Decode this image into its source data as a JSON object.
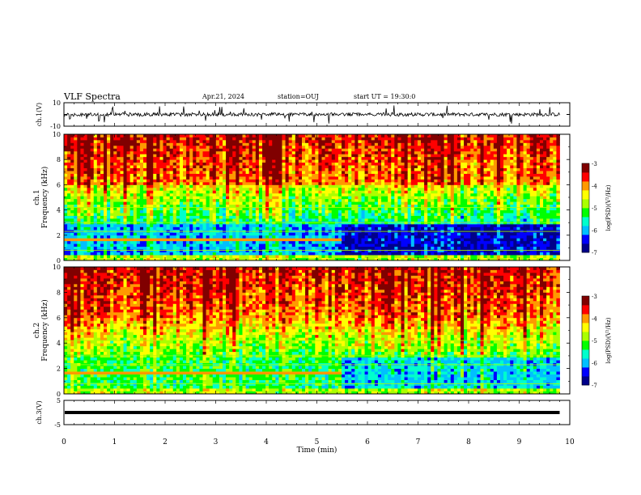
{
  "header": {
    "title": "VLF Spectra",
    "date": "Apr.21, 2024",
    "station": "station=OUJ",
    "start": "start UT = 19:30:0"
  },
  "colors": {
    "colormap": [
      "#00008b",
      "#0000ff",
      "#00bfff",
      "#00ffcc",
      "#00ff00",
      "#aaff00",
      "#ffff00",
      "#ff9900",
      "#ff0000",
      "#800000"
    ],
    "trace": "#000000"
  },
  "chart_data": [
    {
      "type": "line",
      "panel": "waveform-ch1",
      "ylabel": "ch.1(V)",
      "ylim": [
        -10,
        10
      ],
      "y_tick_labels": [
        "10",
        "-10"
      ],
      "xlim": [
        0,
        10
      ],
      "description_values": {
        "baseline_v": 0,
        "noise_amplitude_v": 1.5,
        "spike_amplitude_v": 8,
        "trace_end_min": 9.8
      }
    },
    {
      "type": "heatmap",
      "panel": "spectrogram-ch1",
      "ylabel": "ch.1\nFrequency (kHz)",
      "ylim": [
        0,
        10
      ],
      "y_tick_labels": [
        "0",
        "2",
        "4",
        "6",
        "8",
        "10"
      ],
      "xlim": [
        0,
        10
      ],
      "data_end_min": 9.8,
      "colorbar": {
        "label": "log(PSD)(V²/Hz)",
        "range": [
          -7,
          -3
        ],
        "ticks": [
          "-3",
          "-4",
          "-5",
          "-6",
          "-7"
        ]
      },
      "features": {
        "high_band_khz": [
          6,
          10
        ],
        "high_band_log_psd": -3.5,
        "mid_band_khz": [
          3,
          6
        ],
        "mid_band_log_psd": -5,
        "low_band_khz": [
          0.5,
          3
        ],
        "low_band_log_psd": -6,
        "line_emission_khz": 1.6,
        "line_emission_end_min": 5.5
      }
    },
    {
      "type": "heatmap",
      "panel": "spectrogram-ch2",
      "ylabel": "ch.2\nFrequency (kHz)",
      "ylim": [
        0,
        10
      ],
      "y_tick_labels": [
        "0",
        "2",
        "4",
        "6",
        "8",
        "10"
      ],
      "xlim": [
        0,
        10
      ],
      "data_end_min": 9.8,
      "colorbar": {
        "label": "log(PSD)(V²/Hz)",
        "range": [
          -7,
          -3
        ],
        "ticks": [
          "-3",
          "-4",
          "-5",
          "-6",
          "-7"
        ]
      },
      "features": {
        "high_band_khz": [
          6,
          10
        ],
        "high_band_log_psd": -3.5,
        "mid_band_khz": [
          3,
          6
        ],
        "mid_band_log_psd": -4.6,
        "low_band_khz": [
          0.5,
          3
        ],
        "low_band_log_psd": -5.3,
        "line_emission_khz": 1.6,
        "line_emission_end_min": 5.5
      }
    },
    {
      "type": "line",
      "panel": "waveform-ch3",
      "ylabel": "ch.3(V)",
      "ylim": [
        -5,
        5
      ],
      "y_tick_labels": [
        "5",
        "-5"
      ],
      "xlabel": "Time (min)",
      "xlim": [
        0,
        10
      ],
      "x_tick_labels": [
        "0",
        "1",
        "2",
        "3",
        "4",
        "5",
        "6",
        "7",
        "8",
        "9",
        "10"
      ],
      "description_values": {
        "baseline_v": 0,
        "trace_end_min": 9.8
      }
    }
  ]
}
